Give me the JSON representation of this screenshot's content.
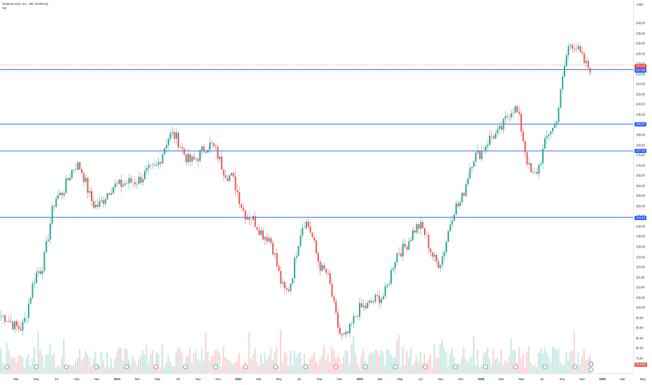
{
  "symbol_title": "Amazon.com, Inc., 3D, NASDAQ",
  "volume_label": "Vol",
  "currency": "USD",
  "colors": {
    "up": "#26a69a",
    "down": "#ef5350",
    "hline": "#2962ff",
    "last": "#f23645"
  },
  "price_axis_labels": [
    "240.00",
    "235.00",
    "230.00",
    "225.00",
    "220.00",
    "215.00",
    "210.00",
    "205.00",
    "200.00",
    "195.00",
    "190.00",
    "185.00",
    "180.00",
    "175.00",
    "170.00",
    "165.00",
    "160.00",
    "155.00",
    "150.00",
    "145.00",
    "140.00",
    "135.00",
    "130.00",
    "125.00",
    "120.00",
    "115.00",
    "110.00",
    "105.00",
    "100.00",
    "95.00",
    "90.00",
    "85.00",
    "80.00",
    "75.00"
  ],
  "price_tags": {
    "last": "219.39",
    "h1": "217.08",
    "h2": "190.25",
    "h3": "177.10",
    "h4": "144.40",
    "bottom": "35.63M"
  },
  "time_axis_labels": [
    "Mar",
    "May",
    "Jul",
    "Sep",
    "Nov",
    "2021",
    "Mar",
    "May",
    "Jul",
    "Sep",
    "Nov",
    "2022",
    "Mar",
    "May",
    "Jul",
    "Sep",
    "Nov",
    "2023",
    "Mar",
    "May",
    "Jul",
    "Sep",
    "Nov",
    "2024",
    "Mar",
    "May",
    "Jul",
    "Sep",
    "Nov",
    "2025",
    "Mar",
    "May"
  ],
  "chart_data": {
    "type": "candlestick",
    "title": "Amazon.com, Inc., 3D, NASDAQ",
    "ylabel": "USD",
    "ylim": [
      72,
      243
    ],
    "horizontal_lines": [
      217.08,
      190.25,
      177.1,
      144.4
    ],
    "last_price": 219.39,
    "series": [
      {
        "name": "price",
        "x": [
          "2020-02",
          "2020-04",
          "2020-06",
          "2020-07",
          "2020-09",
          "2020-10",
          "2020-12",
          "2021-02",
          "2021-04",
          "2021-07",
          "2021-09",
          "2021-11",
          "2022-01",
          "2022-03",
          "2022-04",
          "2022-06",
          "2022-08",
          "2022-10",
          "2022-12",
          "2023-02",
          "2023-04",
          "2023-06",
          "2023-08",
          "2023-10",
          "2023-12",
          "2024-02",
          "2024-04",
          "2024-06",
          "2024-08",
          "2024-10",
          "2024-12",
          "2025-01"
        ],
        "values": [
          96,
          90,
          118,
          155,
          170,
          150,
          160,
          162,
          168,
          185,
          172,
          180,
          165,
          145,
          135,
          108,
          142,
          118,
          85,
          100,
          105,
          128,
          140,
          122,
          150,
          175,
          185,
          198,
          165,
          188,
          230,
          218
        ]
      }
    ]
  }
}
